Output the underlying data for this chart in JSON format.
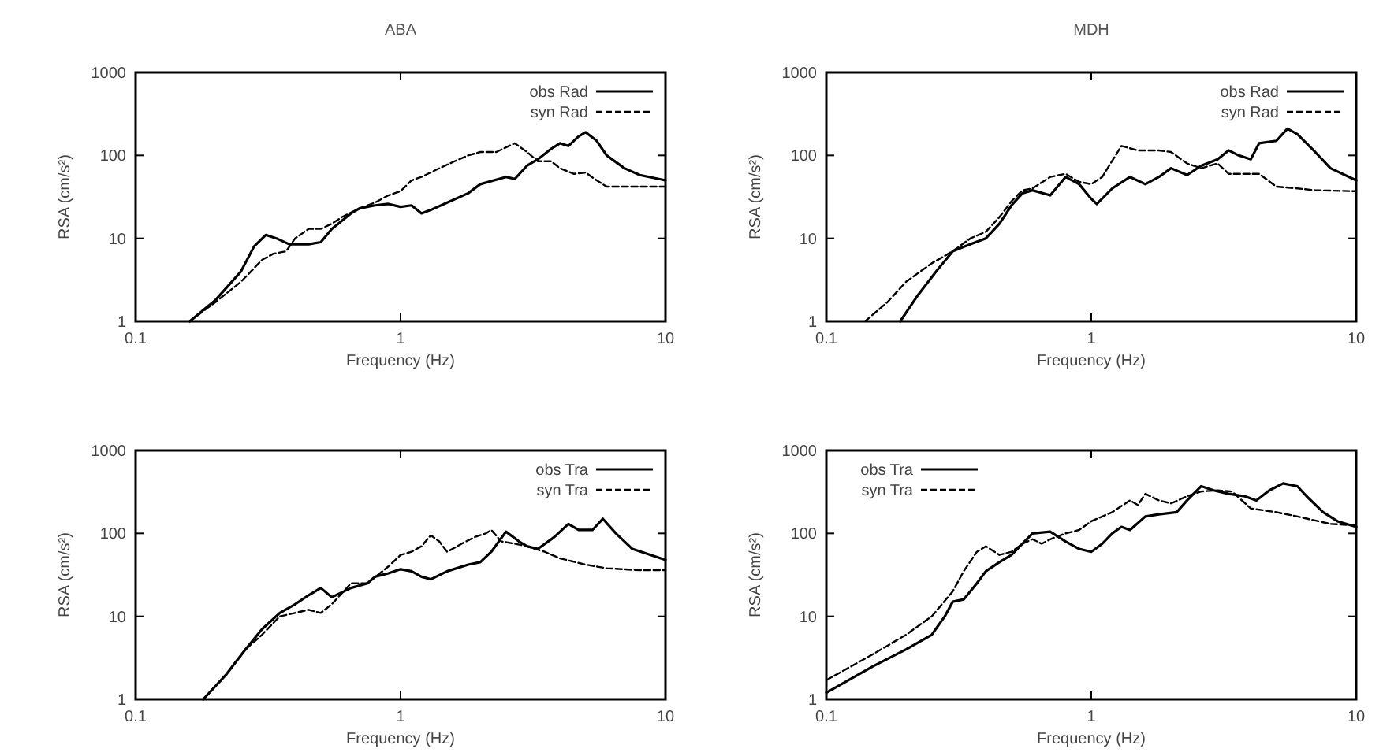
{
  "chart_data": [
    {
      "type": "line",
      "title": "ABA",
      "xlabel": "Frequency (Hz)",
      "ylabel": "RSA (cm/s²)",
      "log": "xy",
      "xlim": [
        0.1,
        10
      ],
      "xticks": [
        0.1,
        1,
        10
      ],
      "ylim": [
        1,
        1000
      ],
      "yticks": [
        1,
        10,
        100,
        1000
      ],
      "legend": "top right",
      "grid": false,
      "series": [
        {
          "name": "obs Rad",
          "color": "#000000",
          "line_style": "solid",
          "x": [
            0.16,
            0.2,
            0.25,
            0.28,
            0.31,
            0.34,
            0.38,
            0.45,
            0.5,
            0.55,
            0.65,
            0.7,
            0.8,
            0.9,
            1.0,
            1.1,
            1.2,
            1.3,
            1.5,
            1.8,
            2,
            2.5,
            2.7,
            3,
            3.3,
            3.7,
            4,
            4.3,
            4.7,
            5,
            5.5,
            6,
            7,
            8,
            10
          ],
          "values": [
            1,
            1.8,
            4,
            8,
            11,
            10,
            8.5,
            8.5,
            9,
            13,
            20,
            23,
            25,
            26,
            24,
            25,
            20,
            22,
            27,
            35,
            45,
            55,
            52,
            75,
            90,
            120,
            140,
            130,
            170,
            190,
            150,
            100,
            70,
            58,
            50
          ]
        },
        {
          "name": "syn Rad",
          "color": "#000000",
          "line_style": "dashed",
          "x": [
            0.16,
            0.2,
            0.25,
            0.3,
            0.33,
            0.37,
            0.4,
            0.45,
            0.5,
            0.55,
            0.6,
            0.7,
            0.8,
            0.9,
            1.0,
            1.1,
            1.2,
            1.4,
            1.6,
            1.8,
            2,
            2.3,
            2.5,
            2.7,
            3,
            3.3,
            3.7,
            4,
            4.5,
            5,
            5.5,
            6,
            7,
            10
          ],
          "values": [
            1,
            1.7,
            3,
            5.5,
            6.5,
            7,
            10,
            13,
            13,
            15,
            18,
            23,
            27,
            33,
            37,
            50,
            55,
            70,
            85,
            100,
            110,
            110,
            125,
            140,
            110,
            85,
            85,
            70,
            60,
            62,
            50,
            42,
            42,
            42
          ]
        }
      ]
    },
    {
      "type": "line",
      "title": "MDH",
      "xlabel": "Frequency (Hz)",
      "ylabel": "RSA (cm/s²)",
      "log": "xy",
      "xlim": [
        0.1,
        10
      ],
      "xticks": [
        0.1,
        1,
        10
      ],
      "ylim": [
        1,
        1000
      ],
      "yticks": [
        1,
        10,
        100,
        1000
      ],
      "legend": "top right",
      "grid": false,
      "series": [
        {
          "name": "obs Rad",
          "color": "#000000",
          "line_style": "solid",
          "x": [
            0.19,
            0.22,
            0.26,
            0.3,
            0.35,
            0.4,
            0.45,
            0.5,
            0.55,
            0.6,
            0.7,
            0.8,
            0.9,
            1.0,
            1.05,
            1.2,
            1.4,
            1.6,
            1.8,
            2.0,
            2.3,
            2.6,
            3,
            3.3,
            3.6,
            4,
            4.3,
            5,
            5.5,
            6,
            7,
            8,
            10
          ],
          "values": [
            1,
            2,
            4,
            7,
            8.5,
            10,
            15,
            25,
            35,
            38,
            33,
            55,
            45,
            30,
            26,
            40,
            55,
            45,
            55,
            70,
            58,
            75,
            90,
            115,
            100,
            90,
            140,
            150,
            210,
            180,
            110,
            70,
            50
          ]
        },
        {
          "name": "syn Rad",
          "color": "#000000",
          "line_style": "dashed",
          "x": [
            0.14,
            0.17,
            0.2,
            0.25,
            0.3,
            0.35,
            0.4,
            0.45,
            0.5,
            0.55,
            0.6,
            0.7,
            0.8,
            0.9,
            1.0,
            1.1,
            1.3,
            1.5,
            1.8,
            2.0,
            2.3,
            2.6,
            3,
            3.3,
            3.8,
            4.3,
            5,
            6,
            7,
            10
          ],
          "values": [
            1,
            1.7,
            3,
            5,
            7,
            10,
            12,
            18,
            28,
            38,
            40,
            55,
            60,
            48,
            45,
            55,
            130,
            115,
            115,
            110,
            80,
            70,
            80,
            60,
            60,
            60,
            42,
            40,
            38,
            37
          ]
        }
      ]
    },
    {
      "type": "line",
      "xlabel": "Frequency (Hz)",
      "ylabel": "RSA (cm/s²)",
      "log": "xy",
      "xlim": [
        0.1,
        10
      ],
      "xticks": [
        0.1,
        1,
        10
      ],
      "ylim": [
        1,
        1000
      ],
      "yticks": [
        1,
        10,
        100,
        1000
      ],
      "legend": "top right",
      "grid": false,
      "series": [
        {
          "name": "obs Tra",
          "color": "#000000",
          "line_style": "solid",
          "x": [
            0.18,
            0.22,
            0.26,
            0.3,
            0.35,
            0.4,
            0.45,
            0.5,
            0.55,
            0.65,
            0.75,
            0.8,
            0.9,
            1.0,
            1.1,
            1.2,
            1.3,
            1.5,
            1.8,
            2,
            2.2,
            2.5,
            2.8,
            3,
            3.3,
            3.8,
            4.3,
            4.7,
            5.3,
            5.8,
            6.5,
            7.5,
            10
          ],
          "values": [
            1,
            2,
            4,
            7,
            11,
            14,
            18,
            22,
            17,
            22,
            25,
            30,
            33,
            37,
            35,
            30,
            28,
            35,
            42,
            45,
            60,
            105,
            80,
            70,
            65,
            90,
            130,
            110,
            110,
            150,
            100,
            65,
            48
          ]
        },
        {
          "name": "syn Tra",
          "color": "#000000",
          "line_style": "dashed",
          "x": [
            0.18,
            0.22,
            0.26,
            0.3,
            0.35,
            0.4,
            0.45,
            0.5,
            0.55,
            0.65,
            0.75,
            0.9,
            1.0,
            1.1,
            1.2,
            1.3,
            1.4,
            1.5,
            1.7,
            1.9,
            2.1,
            2.2,
            2.4,
            2.7,
            3,
            3.5,
            4,
            5,
            6,
            8,
            10
          ],
          "values": [
            1,
            2,
            4,
            6,
            10,
            11,
            12,
            11,
            14,
            25,
            25,
            40,
            55,
            60,
            70,
            95,
            80,
            60,
            75,
            90,
            100,
            110,
            80,
            75,
            70,
            60,
            50,
            42,
            38,
            36,
            36
          ]
        }
      ]
    },
    {
      "type": "line",
      "xlabel": "Frequency (Hz)",
      "ylabel": "RSA (cm/s²)",
      "log": "xy",
      "xlim": [
        0.1,
        10
      ],
      "xticks": [
        0.1,
        1,
        10
      ],
      "ylim": [
        1,
        1000
      ],
      "yticks": [
        1,
        10,
        100,
        1000
      ],
      "legend": "top left",
      "grid": false,
      "series": [
        {
          "name": "obs Tra",
          "color": "#000000",
          "line_style": "solid",
          "x": [
            0.1,
            0.15,
            0.2,
            0.25,
            0.28,
            0.3,
            0.33,
            0.37,
            0.4,
            0.45,
            0.5,
            0.55,
            0.6,
            0.7,
            0.8,
            0.9,
            1.0,
            1.1,
            1.2,
            1.3,
            1.4,
            1.6,
            1.8,
            2.1,
            2.3,
            2.6,
            2.9,
            3.3,
            3.8,
            4.2,
            4.7,
            5.3,
            6,
            6.5,
            7.5,
            8.5,
            10
          ],
          "values": [
            1.2,
            2.5,
            4,
            6,
            10,
            15,
            16,
            25,
            35,
            45,
            55,
            75,
            100,
            105,
            80,
            65,
            60,
            75,
            100,
            120,
            110,
            160,
            170,
            180,
            250,
            370,
            330,
            300,
            280,
            250,
            330,
            400,
            370,
            280,
            180,
            140,
            120
          ]
        },
        {
          "name": "syn Tra",
          "color": "#000000",
          "line_style": "dashed",
          "x": [
            0.1,
            0.15,
            0.2,
            0.25,
            0.3,
            0.33,
            0.37,
            0.4,
            0.45,
            0.5,
            0.55,
            0.6,
            0.65,
            0.7,
            0.8,
            0.9,
            1.0,
            1.2,
            1.4,
            1.5,
            1.6,
            1.8,
            2.0,
            2.3,
            2.6,
            3,
            3.4,
            4,
            5,
            6,
            8,
            10
          ],
          "values": [
            1.7,
            3.5,
            6,
            10,
            20,
            35,
            60,
            70,
            55,
            60,
            75,
            85,
            75,
            85,
            100,
            110,
            140,
            180,
            250,
            220,
            300,
            250,
            230,
            280,
            320,
            330,
            320,
            200,
            180,
            160,
            130,
            125
          ]
        }
      ]
    }
  ]
}
